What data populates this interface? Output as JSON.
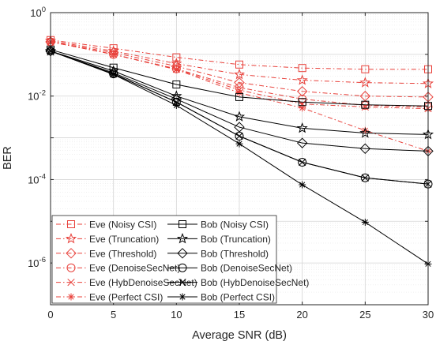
{
  "chart_data": {
    "type": "line",
    "title": "",
    "xlabel": "Average SNR (dB)",
    "ylabel": "BER",
    "x": [
      0,
      5,
      10,
      15,
      20,
      25,
      30
    ],
    "xlim": [
      0,
      30
    ],
    "ylim": [
      1e-07,
      1
    ],
    "yscale": "log",
    "grid": true,
    "legend_position": "bottom-left",
    "x_ticks": [
      "0",
      "5",
      "10",
      "15",
      "20",
      "25",
      "30"
    ],
    "y_ticks": [
      {
        "base": "10",
        "exp": "0"
      },
      {
        "base": "10",
        "exp": "-2"
      },
      {
        "base": "10",
        "exp": "-4"
      },
      {
        "base": "10",
        "exp": "-6"
      }
    ],
    "series": [
      {
        "name": "Eve (Noisy CSI)",
        "color": "#e8403a",
        "dash": "dashdot",
        "marker": "square",
        "values": [
          0.22,
          0.14,
          0.085,
          0.057,
          0.047,
          0.044,
          0.044
        ]
      },
      {
        "name": "Eve (Truncation)",
        "color": "#e8403a",
        "dash": "dashdot",
        "marker": "star",
        "values": [
          0.21,
          0.12,
          0.06,
          0.033,
          0.024,
          0.021,
          0.02
        ]
      },
      {
        "name": "Eve (Threshold)",
        "color": "#e8403a",
        "dash": "dashdot",
        "marker": "diamond",
        "values": [
          0.2,
          0.11,
          0.052,
          0.021,
          0.013,
          0.01,
          0.0095
        ]
      },
      {
        "name": "Eve (DenoiseSecNet)",
        "color": "#e8403a",
        "dash": "dashdot",
        "marker": "circle",
        "values": [
          0.2,
          0.1,
          0.045,
          0.016,
          0.0085,
          0.006,
          0.0055
        ]
      },
      {
        "name": "Eve (HybDenoiseSecNet)",
        "color": "#e8403a",
        "dash": "dashdot",
        "marker": "x",
        "values": [
          0.2,
          0.1,
          0.044,
          0.014,
          0.0065,
          0.0055,
          0.005
        ]
      },
      {
        "name": "Eve (Perfect CSI)",
        "color": "#e8403a",
        "dash": "dashdot",
        "marker": "asterisk",
        "values": [
          0.2,
          0.1,
          0.043,
          0.012,
          0.0052,
          0.0015,
          0.00048
        ]
      },
      {
        "name": "Bob (Noisy CSI)",
        "color": "#000000",
        "dash": "solid",
        "marker": "square",
        "values": [
          0.13,
          0.048,
          0.019,
          0.0095,
          0.0072,
          0.0062,
          0.0058
        ]
      },
      {
        "name": "Bob (Truncation)",
        "color": "#000000",
        "dash": "solid",
        "marker": "star",
        "values": [
          0.12,
          0.04,
          0.01,
          0.0032,
          0.0017,
          0.0013,
          0.0012
        ]
      },
      {
        "name": "Bob (Threshold)",
        "color": "#000000",
        "dash": "solid",
        "marker": "diamond",
        "values": [
          0.12,
          0.036,
          0.0085,
          0.0018,
          0.00075,
          0.00055,
          0.00048
        ]
      },
      {
        "name": "Bob (DenoiseSecNet)",
        "color": "#000000",
        "dash": "solid",
        "marker": "circle",
        "values": [
          0.12,
          0.034,
          0.0072,
          0.0011,
          0.00026,
          0.00011,
          7.8e-05
        ]
      },
      {
        "name": "Bob (HybDenoiseSecNet)",
        "color": "#000000",
        "dash": "solid",
        "marker": "x",
        "values": [
          0.12,
          0.034,
          0.0072,
          0.0011,
          0.00026,
          0.00011,
          7.8e-05
        ]
      },
      {
        "name": "Bob (Perfect CSI)",
        "color": "#000000",
        "dash": "solid",
        "marker": "asterisk",
        "values": [
          0.12,
          0.033,
          0.006,
          0.00072,
          7.5e-05,
          9.5e-06,
          9.5e-07
        ]
      }
    ]
  }
}
